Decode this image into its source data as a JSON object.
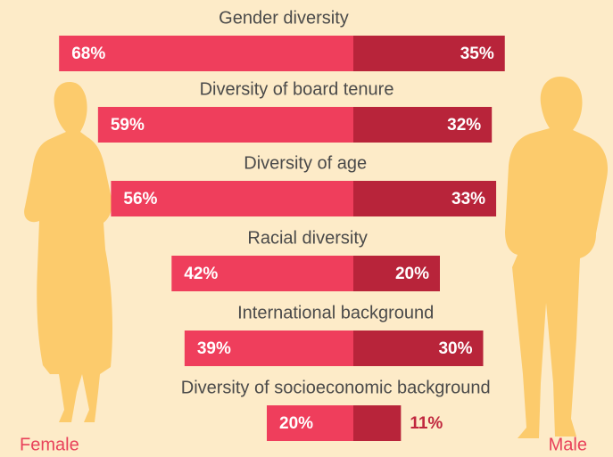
{
  "chart_data": {
    "type": "diverging-bar",
    "categories": [
      "Gender diversity",
      "Diversity of board tenure",
      "Diversity of age",
      "Racial diversity",
      "International background",
      "Diversity of socioeconomic background"
    ],
    "series": [
      {
        "name": "Female",
        "color": "#ef3e5c",
        "values": [
          68,
          59,
          56,
          42,
          39,
          20
        ],
        "value_labels": [
          "68%",
          "59%",
          "56%",
          "42%",
          "39%",
          "20%"
        ]
      },
      {
        "name": "Male",
        "color": "#b8243a",
        "values": [
          35,
          32,
          33,
          20,
          30,
          11
        ],
        "value_labels": [
          "35%",
          "32%",
          "33%",
          "20%",
          "30%",
          "11%"
        ]
      }
    ]
  }
}
